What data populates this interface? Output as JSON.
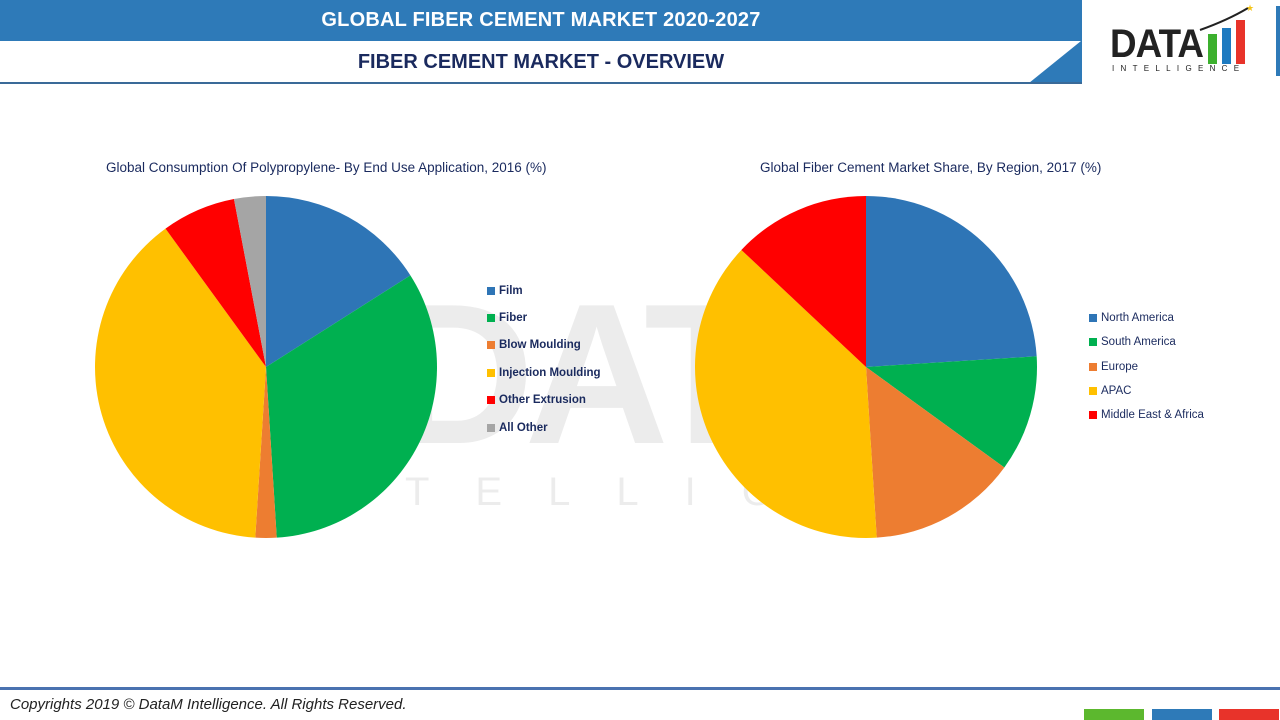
{
  "header": {
    "title": "GLOBAL FIBER CEMENT MARKET  2020-2027",
    "subtitle": "FIBER CEMENT MARKET - OVERVIEW",
    "logo": {
      "word": "DATA",
      "tagline": "INTELLIGENCE"
    }
  },
  "watermark": {
    "big": "DATA",
    "small": "TELLIGE"
  },
  "footer": {
    "copyright": "Copyrights 2019 © DataM Intelligence. All Rights Reserved.",
    "blocks": [
      "#5cb82e",
      "#2e7ab8",
      "#e8332a"
    ]
  },
  "chart_data": [
    {
      "type": "pie",
      "title": "Global Consumption Of Polypropylene- By End Use Application, 2016 (%)",
      "categories": [
        "Film",
        "Fiber",
        "Blow Moulding",
        "Injection Moulding",
        "Other Extrusion",
        "All Other"
      ],
      "values": [
        16,
        33,
        2,
        39,
        7,
        3
      ],
      "colors": [
        "#2e75b6",
        "#00b050",
        "#ed7d31",
        "#ffc000",
        "#ff0000",
        "#a5a5a5"
      ],
      "legend_position": "right",
      "start_angle": 0,
      "direction": "clockwise"
    },
    {
      "type": "pie",
      "title": "Global Fiber Cement Market Share, By Region, 2017 (%)",
      "categories": [
        "North America",
        "South America",
        "Europe",
        "APAC",
        "Middle East & Africa"
      ],
      "values": [
        24,
        11,
        14,
        38,
        13
      ],
      "colors": [
        "#2e75b6",
        "#00b050",
        "#ed7d31",
        "#ffc000",
        "#ff0000"
      ],
      "legend_position": "right",
      "start_angle": 0,
      "direction": "clockwise"
    }
  ]
}
